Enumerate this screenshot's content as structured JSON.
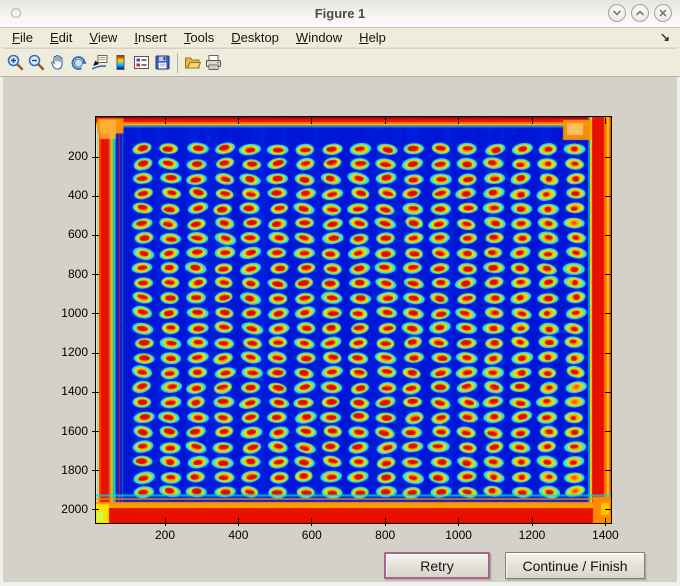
{
  "window": {
    "title": "Figure 1",
    "controls": [
      "minimize",
      "maximize",
      "close"
    ]
  },
  "menu": {
    "items": [
      "File",
      "Edit",
      "View",
      "Insert",
      "Tools",
      "Desktop",
      "Window",
      "Help"
    ],
    "dock_arrow": "↘"
  },
  "toolbar": {
    "tools": [
      "zoom-in",
      "zoom-out",
      "pan",
      "rotate-3d",
      "data-cursor",
      "colorbar",
      "insert-legend",
      "save-figure",
      "open-file",
      "print-figure"
    ]
  },
  "plot": {
    "x_ticks": [
      200,
      400,
      600,
      800,
      1000,
      1200,
      1400
    ],
    "y_ticks": [
      200,
      400,
      600,
      800,
      1000,
      1200,
      1400,
      1600,
      1800,
      2000
    ],
    "x_range": [
      12,
      1402
    ],
    "y_range": [
      -4,
      2062
    ],
    "image": {
      "kind": "microarray scan, jet colormap",
      "grid_rows": 24,
      "grid_cols": 17,
      "background": "#0016d6",
      "spot_core": "#dd0b00",
      "spot_ring_orange": "#ff8700",
      "spot_ring_yellow": "#ffd800",
      "spot_ring_green": "#cdf000",
      "spot_halo": "#35e2ea",
      "edge_band_red": "#e81000",
      "edge_band_orange": "#ff9300",
      "edge_fringe_cyan": "#2ad2e6"
    }
  },
  "buttons": {
    "retry": "Retry",
    "continue": "Continue / Finish"
  },
  "theme": {
    "titlebar_bg": "#f2f0ec",
    "menubar_bg": "#f0ecdb",
    "figure_bg": "#d4d1c8",
    "retry_focus_border": "#b06189"
  }
}
